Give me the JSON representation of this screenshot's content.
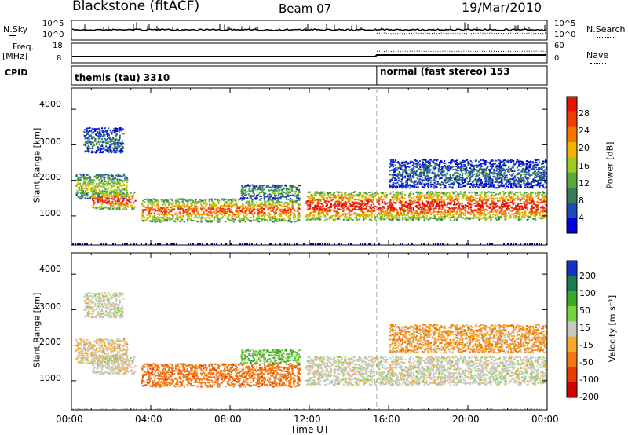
{
  "header": {
    "site": "Blackstone (fitACF)",
    "beam": "Beam 07",
    "date": "19/Mar/2010"
  },
  "status": {
    "nsky_label": "N.Sky",
    "nsearch_label": "N.Search",
    "freq_label": "Freq.",
    "freq_unit": "[MHz]",
    "nave_label": "Nave",
    "cpid_label": "CPID",
    "noise_ticks": [
      "10^5",
      "10^0"
    ],
    "noise_ticks_right": [
      "10^5",
      "10^0"
    ],
    "freq_ticks": [
      "18",
      "8"
    ],
    "nave_ticks": [
      "60",
      "0"
    ],
    "cpid_segments": [
      {
        "name": "themis (tau) 3310",
        "start_hour": 0.0,
        "end_hour": 15.4
      },
      {
        "name": "normal (fast stereo) 153",
        "start_hour": 15.4,
        "end_hour": 24.0
      }
    ],
    "mode_change_hour": 15.4
  },
  "panels": {
    "power": {
      "ylabel": "Slant Range [km]",
      "yticks": [
        "4000",
        "3000",
        "2000",
        "1000"
      ],
      "colorbar_label": "Power [dB]",
      "colorbar_ticks": [
        "28",
        "24",
        "20",
        "16",
        "12",
        "8",
        "4"
      ],
      "colors": [
        "#0000dc",
        "#1e4ab4",
        "#377d5a",
        "#58a83c",
        "#9ccc20",
        "#f0b400",
        "#f47800",
        "#f03c00",
        "#e61400"
      ]
    },
    "velocity": {
      "ylabel": "Slant Range [km]",
      "yticks": [
        "4000",
        "3000",
        "2000",
        "1000"
      ],
      "colorbar_label": "Velocity [m s⁻¹]",
      "colorbar_ticks": [
        "200",
        "100",
        "50",
        "15",
        "-15",
        "-50",
        "-100",
        "-200"
      ],
      "colors": [
        "#1432c8",
        "#1e7850",
        "#3caa28",
        "#7ad23c",
        "#c8c8be",
        "#f5aa28",
        "#f07814",
        "#e63c00",
        "#d20000"
      ],
      "ground_scatter_color": "#c8c8be"
    }
  },
  "xaxis": {
    "label": "Time UT",
    "ticks": [
      "00:00",
      "04:00",
      "08:00",
      "12:00",
      "16:00",
      "20:00",
      "00:00"
    ]
  },
  "chart_data": {
    "type": "heatmap",
    "title": "Blackstone (fitACF)",
    "subtitle": "Beam 07",
    "date": "19/Mar/2010",
    "xlabel": "Time UT",
    "ylabel": "Slant Range [km]",
    "xlim_hours": [
      0,
      24
    ],
    "ylim_km": [
      180,
      4600
    ],
    "scatter_regions": [
      {
        "start_hour": 0.2,
        "end_hour": 2.8,
        "range_low_km": 1500,
        "range_high_km": 2200,
        "power_db": 14,
        "velocity_ms": -15
      },
      {
        "start_hour": 0.6,
        "end_hour": 2.6,
        "range_low_km": 2800,
        "range_high_km": 3500,
        "power_db": 7,
        "velocity_ms": 0
      },
      {
        "start_hour": 1.0,
        "end_hour": 3.2,
        "range_low_km": 1200,
        "range_high_km": 1700,
        "power_db": 24,
        "velocity_ms": 0
      },
      {
        "start_hour": 3.5,
        "end_hour": 11.5,
        "range_low_km": 850,
        "range_high_km": 1500,
        "power_db": 22,
        "velocity_ms": -60
      },
      {
        "start_hour": 8.5,
        "end_hour": 11.5,
        "range_low_km": 1500,
        "range_high_km": 1900,
        "power_db": 10,
        "velocity_ms": 30
      },
      {
        "start_hour": 11.8,
        "end_hour": 24.0,
        "range_low_km": 900,
        "range_high_km": 1700,
        "power_db": 26,
        "velocity_ms": 0
      },
      {
        "start_hour": 16.0,
        "end_hour": 24.0,
        "range_low_km": 1800,
        "range_high_km": 2600,
        "power_db": 6,
        "velocity_ms": -30
      }
    ],
    "power_colorbar": {
      "label": "Power [dB]",
      "min": 0,
      "max": 30
    },
    "velocity_colorbar": {
      "label": "Velocity [m s⁻¹]",
      "min": -200,
      "max": 200
    }
  }
}
